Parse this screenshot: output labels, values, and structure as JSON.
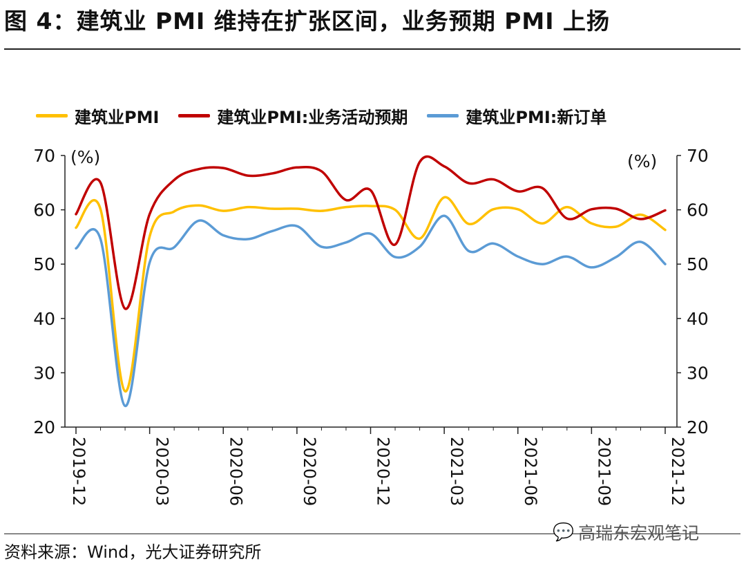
{
  "header": {
    "title": "图 4：建筑业 PMI 维持在扩张区间，业务预期 PMI 上扬"
  },
  "footer": {
    "source": "资料来源：Wind，光大证券研究所",
    "watermark": "高瑞东宏观笔记"
  },
  "colors": {
    "yellow": "#FFC000",
    "red": "#C00000",
    "blue": "#5B9BD5"
  },
  "chart_data": {
    "type": "line",
    "title": "",
    "xlabel": "",
    "ylabel_left": "(%)",
    "ylabel_right": "(%)",
    "ylim": [
      20,
      70
    ],
    "yticks": [
      "20",
      "30",
      "40",
      "50",
      "60",
      "70"
    ],
    "xticks": [
      "2019-12",
      "2020-03",
      "2020-06",
      "2020-09",
      "2020-12",
      "2021-03",
      "2021-06",
      "2021-09",
      "2021-12"
    ],
    "x": [
      "2019-12",
      "2020-01",
      "2020-02",
      "2020-03",
      "2020-04",
      "2020-05",
      "2020-06",
      "2020-07",
      "2020-08",
      "2020-09",
      "2020-10",
      "2020-11",
      "2020-12",
      "2021-01",
      "2021-02",
      "2021-03",
      "2021-04",
      "2021-05",
      "2021-06",
      "2021-07",
      "2021-08",
      "2021-09",
      "2021-10",
      "2021-11",
      "2021-12"
    ],
    "series": [
      {
        "name": "建筑业PMI",
        "color": "#FFC000",
        "values": [
          56.7,
          60.1,
          26.6,
          55.1,
          59.7,
          60.8,
          59.8,
          60.5,
          60.2,
          60.2,
          59.8,
          60.5,
          60.7,
          60.0,
          54.7,
          62.3,
          57.4,
          60.1,
          60.1,
          57.5,
          60.5,
          57.5,
          56.9,
          59.1,
          56.3
        ]
      },
      {
        "name": "建筑业PMI:业务活动预期",
        "color": "#C00000",
        "values": [
          59.2,
          65.0,
          41.8,
          59.2,
          65.5,
          67.5,
          67.7,
          66.3,
          66.7,
          67.8,
          67.1,
          61.8,
          63.6,
          53.6,
          68.8,
          68.0,
          64.9,
          65.6,
          63.4,
          64.0,
          58.4,
          60.1,
          60.2,
          58.3,
          59.9
        ]
      },
      {
        "name": "建筑业PMI:新订单",
        "color": "#5B9BD5",
        "values": [
          52.9,
          54.6,
          23.9,
          50.3,
          53.1,
          58.0,
          55.3,
          54.6,
          56.1,
          57.0,
          53.2,
          54.0,
          55.6,
          51.3,
          53.2,
          58.9,
          52.4,
          53.8,
          51.4,
          50.0,
          51.4,
          49.4,
          51.3,
          54.1,
          50.0
        ]
      }
    ]
  }
}
